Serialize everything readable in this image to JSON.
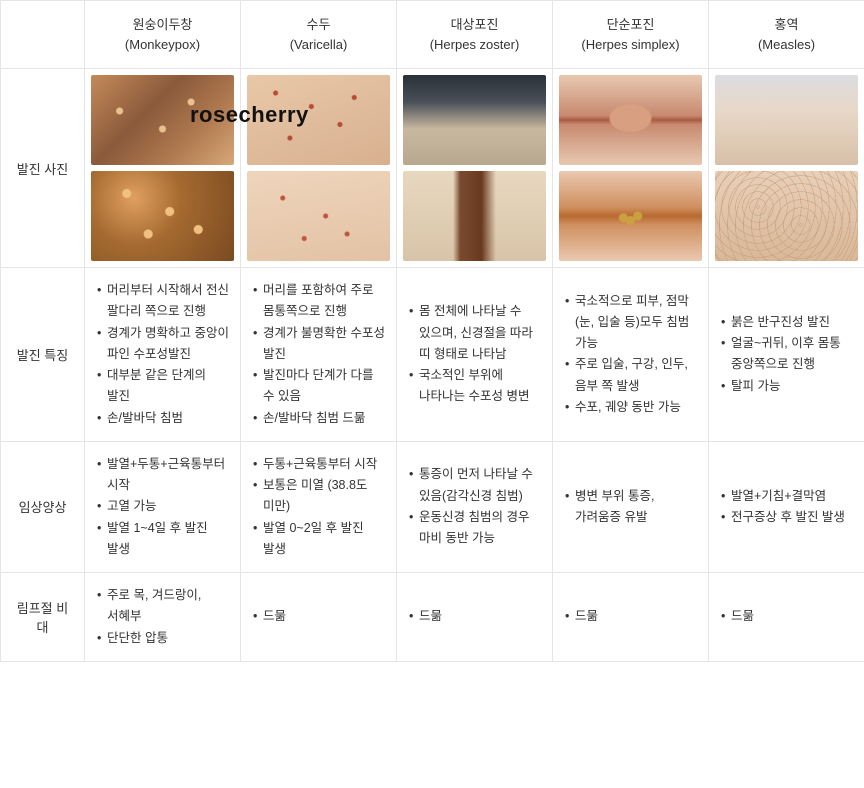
{
  "watermark": "rosecherry",
  "colors": {
    "border": "#e5e5e5",
    "text": "#333333",
    "bg": "#ffffff"
  },
  "columns": [
    {
      "kr": "원숭이두창",
      "en": "(Monkeypox)"
    },
    {
      "kr": "수두",
      "en": "(Varicella)"
    },
    {
      "kr": "대상포진",
      "en": "(Herpes zoster)"
    },
    {
      "kr": "단순포진",
      "en": "(Herpes simplex)"
    },
    {
      "kr": "홍역",
      "en": "(Measles)"
    }
  ],
  "row_labels": {
    "photos": "발진 사진",
    "features": "발진 특징",
    "clinical": "임상양상",
    "lymph": "림프절 비대"
  },
  "photos": [
    {
      "top": "linear-gradient(135deg,#c48a5a 0%,#8a5a3a 40%,#b07a50 70%,#d6a878 100%)",
      "bot": "radial-gradient(circle at 30% 30%,#e0a060 0%,#a56a30 40%,#7a4a20 100%)",
      "overlay_top": "radial-gradient(circle at 20% 40%,#eac090 3px,transparent 4px),radial-gradient(circle at 50% 60%,#eac090 3px,transparent 4px),radial-gradient(circle at 70% 30%,#eac090 3px,transparent 4px)",
      "overlay_bot": "radial-gradient(circle at 25% 25%,#f0c080 4px,transparent 5px),radial-gradient(circle at 55% 45%,#f0c080 4px,transparent 5px),radial-gradient(circle at 75% 65%,#f0c080 4px,transparent 5px),radial-gradient(circle at 40% 70%,#f0c080 4px,transparent 5px)"
    },
    {
      "top": "linear-gradient(160deg,#e8c8a8 0%,#d8b090 100%)",
      "bot": "linear-gradient(170deg,#efd5bc 0%,#e2c2a4 100%)",
      "overlay_top": "radial-gradient(circle at 20% 20%,#b84a3a 2px,transparent 3px),radial-gradient(circle at 45% 35%,#b84a3a 2px,transparent 3px),radial-gradient(circle at 65% 55%,#b84a3a 2px,transparent 3px),radial-gradient(circle at 30% 70%,#b84a3a 2px,transparent 3px),radial-gradient(circle at 75% 25%,#b84a3a 2px,transparent 3px)",
      "overlay_bot": "radial-gradient(circle at 25% 30%,#c05544 2px,transparent 3px),radial-gradient(circle at 55% 50%,#c05544 2px,transparent 3px),radial-gradient(circle at 70% 70%,#c05544 2px,transparent 3px),radial-gradient(circle at 40% 75%,#c05544 2px,transparent 3px)"
    },
    {
      "top": "linear-gradient(180deg,#2a3038 0%,#4a5058 30%,#c8b8a0 60%,#b8a890 100%)",
      "bot": "linear-gradient(180deg,#e8d8c0 0%,#d8c4a8 100%)",
      "overlay_top": "",
      "overlay_bot": "linear-gradient(90deg,transparent 35%,#7a4a30 40%,#6a3a20 55%,transparent 65%)"
    },
    {
      "top": "linear-gradient(180deg,#e8c8b0 0%,#c88a70 45%,#a85a40 50%,#c88a70 55%,#e8c8b0 100%)",
      "bot": "linear-gradient(180deg,#eac8b0 0%,#d09060 40%,#b86a30 50%,#d09060 60%,#eac8b0 100%)",
      "overlay_top": "radial-gradient(ellipse at 50% 48%,#d8a080 20px,transparent 22px)",
      "overlay_bot": "radial-gradient(circle at 45% 52%,#caa040 4px,transparent 5px),radial-gradient(circle at 55% 50%,#caa040 4px,transparent 5px),radial-gradient(circle at 50% 55%,#caa040 4px,transparent 5px)"
    },
    {
      "top": "linear-gradient(180deg,#dcdce0 0%,#e8d8c8 40%,#d8c0a8 100%)",
      "bot": "linear-gradient(180deg,#e8d0b8 0%,#d8b898 100%)",
      "overlay_top": "",
      "overlay_bot": "repeating-radial-gradient(circle at 30% 40%,#c89878 1px,transparent 2px,transparent 8px),repeating-radial-gradient(circle at 60% 60%,#c89878 1px,transparent 2px,transparent 9px)"
    }
  ],
  "features": [
    [
      "머리부터 시작해서 전신 팔다리 쪽으로 진행",
      "경계가 명확하고 중앙이 파인 수포성발진",
      "대부분 같은 단계의 발진",
      "손/발바닥 침범"
    ],
    [
      "머리를 포함하여 주로 몸통쪽으로 진행",
      "경계가 불명확한 수포성 발진",
      "발진마다 단계가 다를 수 있음",
      "손/발바닥 침범 드묾"
    ],
    [
      "몸 전체에 나타날 수 있으며, 신경절을 따라 띠 형태로 나타남",
      "국소적인 부위에 나타나는 수포성 병변"
    ],
    [
      "국소적으로 피부, 점막 (눈, 입술 등)모두 침범 가능",
      "주로 입술, 구강, 인두, 음부 쪽 발생",
      "수포, 궤양 동반 가능"
    ],
    [
      "붉은 반구진성 발진",
      "얼굴~귀뒤, 이후 몸통 중앙쪽으로 진행",
      "탈피 가능"
    ]
  ],
  "clinical": [
    [
      "발열+두통+근육통부터 시작",
      "고열 가능",
      "발열 1~4일 후 발진 발생"
    ],
    [
      "두통+근육통부터 시작",
      "보통은 미열 (38.8도 미만)",
      "발열 0~2일 후 발진 발생"
    ],
    [
      "통증이 먼저 나타날 수 있음(감각신경 침범)",
      "운동신경 침범의 경우 마비 동반 가능"
    ],
    [
      "병변 부위 통증, 가려움증 유발"
    ],
    [
      "발열+기침+결막염",
      "전구증상 후 발진 발생"
    ]
  ],
  "lymph": [
    [
      "주로 목, 겨드랑이, 서혜부",
      "단단한 압통"
    ],
    [
      "드묾"
    ],
    [
      "드묾"
    ],
    [
      "드묾"
    ],
    [
      "드묾"
    ]
  ]
}
